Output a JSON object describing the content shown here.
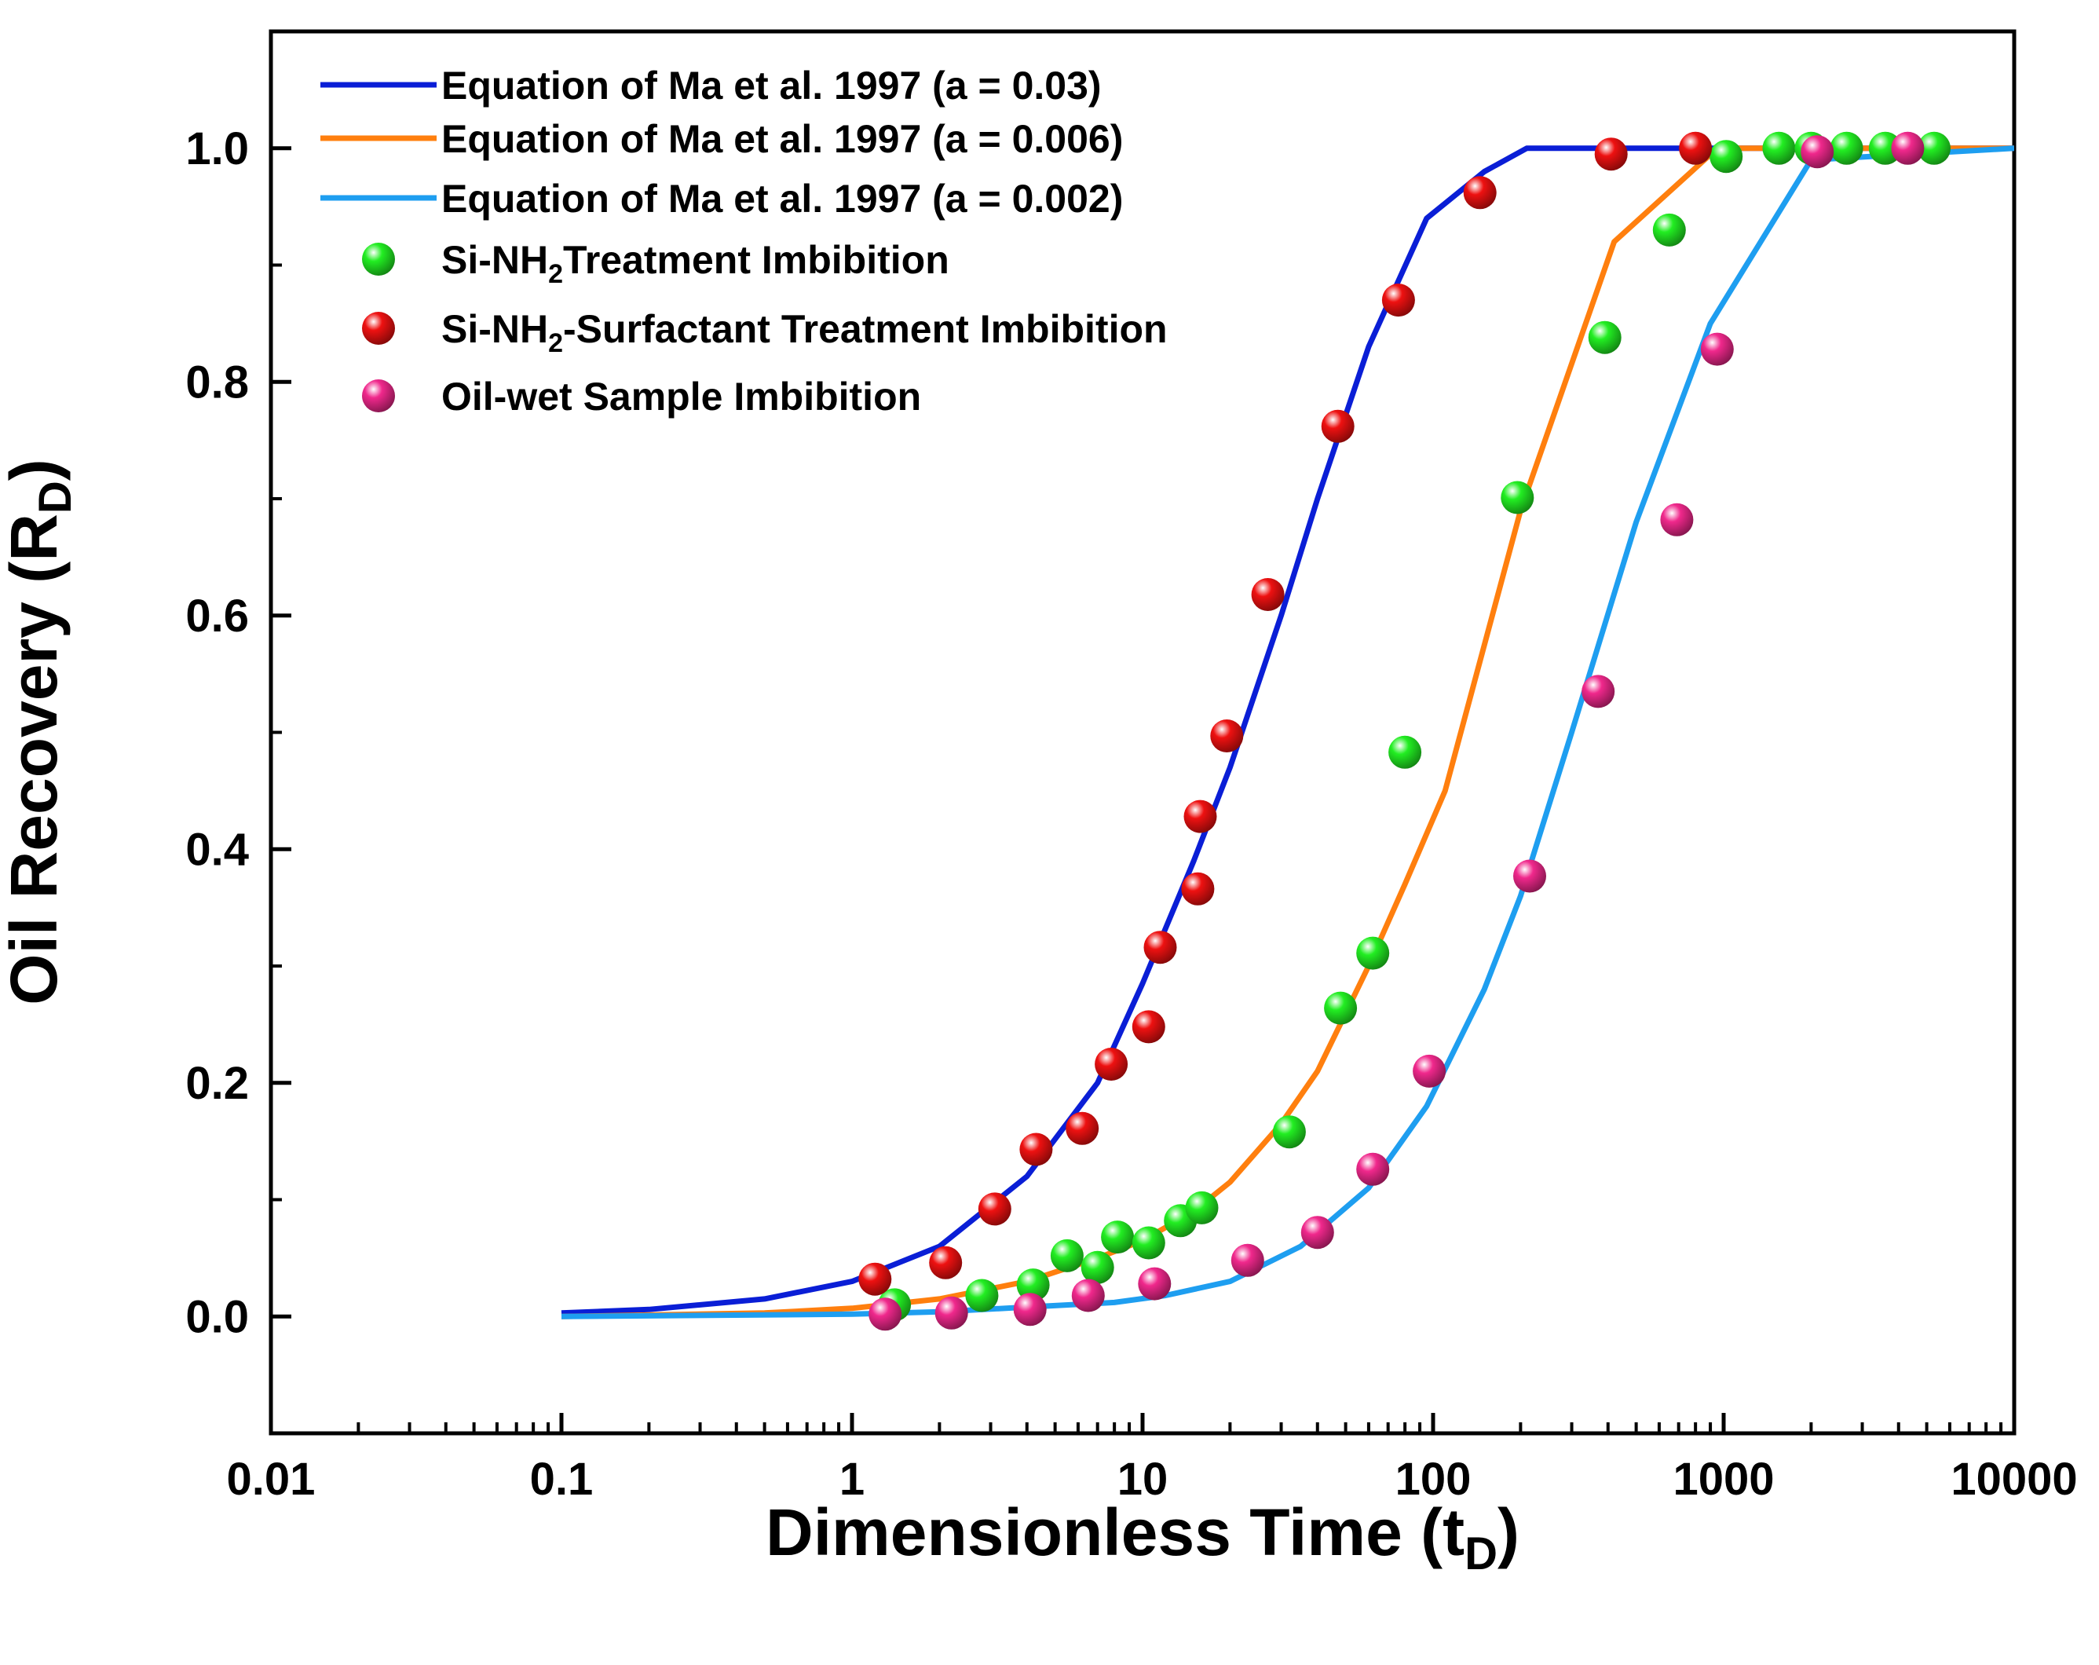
{
  "chart_data": {
    "type": "line",
    "xscale": "log",
    "xlim": [
      0.01,
      10000
    ],
    "ylim": [
      -0.1,
      1.1
    ],
    "xlabel": "Dimensionless Time (t",
    "xlabel_sub": "D",
    "xlabel_close": ")",
    "ylabel": "Oil Recovery (R",
    "ylabel_sub": "D",
    "ylabel_close": ")",
    "xticks": [
      0.01,
      0.1,
      1,
      10,
      100,
      1000,
      10000
    ],
    "xtick_labels": [
      "0.01",
      "0.1",
      "1",
      "10",
      "100",
      "1000",
      "10000"
    ],
    "yticks": [
      0.0,
      0.2,
      0.4,
      0.6,
      0.8,
      1.0
    ],
    "ytick_labels": [
      "0.0",
      "0.2",
      "0.4",
      "0.6",
      "0.8",
      "1.0"
    ],
    "legend_position": "top-left",
    "curves": [
      {
        "name": "Equation of Ma et al. 1997 (a = 0.03)",
        "color": "#0a1ed6",
        "x": [
          0.1,
          0.2,
          0.5,
          1,
          2,
          4,
          7,
          10,
          15,
          20,
          30,
          40,
          60,
          95,
          150,
          210,
          10000
        ],
        "y": [
          0.003,
          0.006,
          0.015,
          0.03,
          0.06,
          0.12,
          0.2,
          0.285,
          0.39,
          0.47,
          0.6,
          0.7,
          0.83,
          0.94,
          0.98,
          1.0,
          1.0
        ]
      },
      {
        "name": "Equation of Ma et al. 1997 (a = 0.006)",
        "color": "#ff7f0e",
        "x": [
          0.1,
          0.5,
          1,
          2,
          4,
          7,
          10,
          15,
          20,
          30,
          40,
          60,
          80,
          110,
          200,
          420,
          950,
          10000
        ],
        "y": [
          0.0,
          0.003,
          0.007,
          0.015,
          0.03,
          0.05,
          0.065,
          0.09,
          0.115,
          0.165,
          0.21,
          0.3,
          0.37,
          0.45,
          0.69,
          0.92,
          1.0,
          1.0
        ]
      },
      {
        "name": "Equation of Ma et al. 1997 (a = 0.002)",
        "color": "#1e9ef0",
        "x": [
          0.1,
          1,
          2,
          4,
          8,
          12,
          20,
          35,
          60,
          95,
          150,
          200,
          300,
          500,
          900,
          2000,
          10000
        ],
        "y": [
          0.0,
          0.002,
          0.004,
          0.008,
          0.012,
          0.018,
          0.03,
          0.06,
          0.11,
          0.18,
          0.28,
          0.36,
          0.5,
          0.68,
          0.85,
          0.99,
          1.0
        ]
      }
    ],
    "scatter": [
      {
        "name": "Si-NH",
        "name_sub": "2",
        "name_rest": "Treatment Imbibition",
        "color": "#22ee22",
        "x": [
          1.4,
          2.8,
          4.2,
          5.5,
          7,
          8.2,
          10.5,
          13.5,
          16,
          32,
          48,
          62,
          80,
          195,
          390,
          650,
          1020,
          1550,
          2000,
          2650,
          3600,
          5300
        ],
        "y": [
          0.01,
          0.018,
          0.027,
          0.052,
          0.042,
          0.068,
          0.063,
          0.082,
          0.093,
          0.158,
          0.264,
          0.311,
          0.483,
          0.701,
          0.838,
          0.93,
          0.993,
          1.0,
          1.0,
          1.0,
          1.0,
          1.0
        ]
      },
      {
        "name": "Si-NH",
        "name_sub": "2",
        "name_rest": "-Surfactant Treatment Imbibition",
        "color": "#ee1111",
        "x": [
          1.2,
          2.1,
          3.1,
          4.3,
          6.2,
          7.8,
          10.5,
          11.5,
          15.5,
          15.8,
          19.5,
          27,
          47,
          76,
          145,
          410,
          800
        ],
        "y": [
          0.032,
          0.046,
          0.092,
          0.143,
          0.161,
          0.216,
          0.248,
          0.316,
          0.366,
          0.428,
          0.497,
          0.618,
          0.762,
          0.87,
          0.962,
          0.995,
          1.0
        ]
      },
      {
        "name": "Oil-wet Sample Imbibition",
        "name_sub": "",
        "name_rest": "",
        "color": "#f0288c",
        "x": [
          1.3,
          2.2,
          4.1,
          6.5,
          11,
          23,
          40,
          62,
          97,
          215,
          370,
          690,
          950,
          2100,
          4300
        ],
        "y": [
          0.002,
          0.003,
          0.006,
          0.018,
          0.028,
          0.048,
          0.072,
          0.126,
          0.21,
          0.377,
          0.535,
          0.682,
          0.828,
          0.997,
          1.0
        ]
      }
    ]
  }
}
